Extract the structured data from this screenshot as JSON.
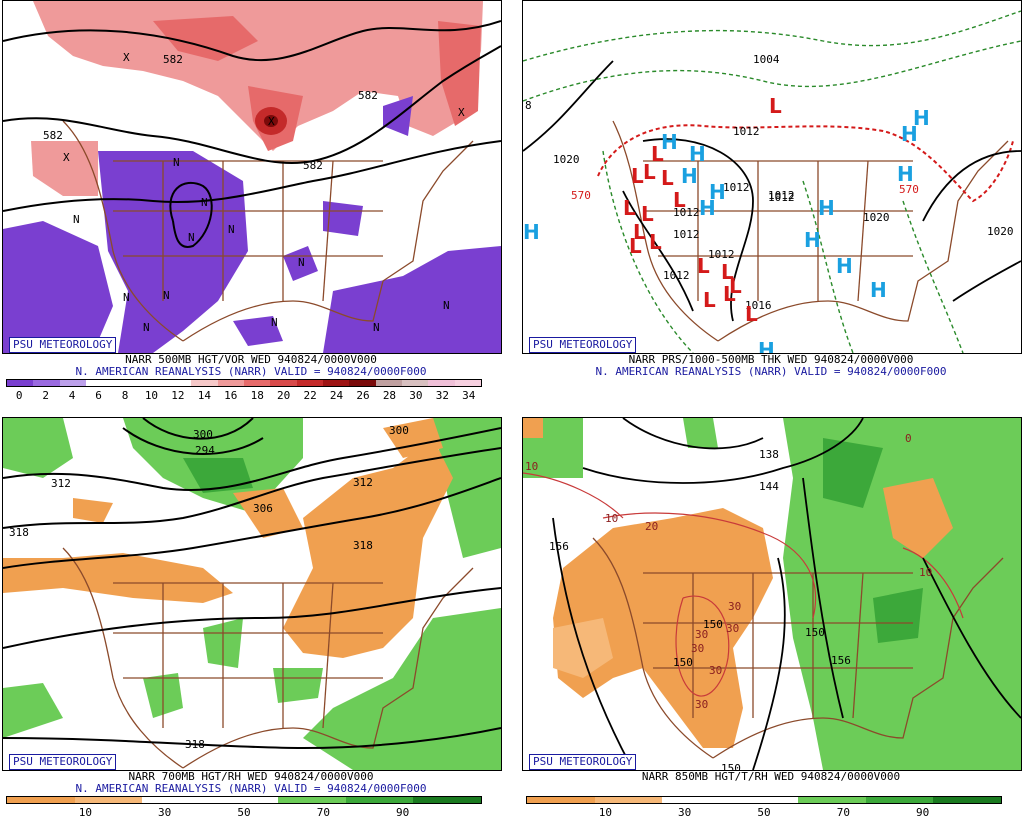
{
  "badge": "PSU METEOROLOGY",
  "reanalysis_line": "N. AMERICAN REANALYSIS (NARR) VALID = 940824/0000F000",
  "panels": [
    {
      "title": "NARR 500MB HGT/VOR WED 940824/0000V000",
      "ticks": [
        "0",
        "2",
        "4",
        "6",
        "8",
        "10",
        "12",
        "14",
        "16",
        "18",
        "20",
        "22",
        "24",
        "26",
        "28",
        "30",
        "32",
        "34"
      ],
      "colorbar": [
        "#7a3fd0",
        "#9a6ae0",
        "#bca0ea",
        "#ffffff",
        "#ffffff",
        "#ffffff",
        "#ffffff",
        "#f6c8c8",
        "#ef9a9a",
        "#e66a6a",
        "#d84a4a",
        "#c42a2a",
        "#9e1414",
        "#7a0a0a",
        "#c0a0a0",
        "#d8c0c0",
        "#f0c0d8",
        "#f7d0e0"
      ],
      "contour_labels": [
        "582",
        "582",
        "582",
        "582"
      ],
      "center_labels": [
        "X",
        "X",
        "X",
        "X",
        "N",
        "N",
        "N",
        "N",
        "N",
        "N",
        "N",
        "N",
        "N",
        "N",
        "N",
        "N"
      ]
    },
    {
      "title": "NARR PRS/1000-500MB THK WED 940824/0000V000",
      "contour_labels": [
        "1020",
        "1012",
        "1012",
        "1012",
        "1012",
        "1012",
        "1012",
        "1016",
        "1004",
        "1020",
        "1020",
        "1012",
        "1012",
        "8"
      ],
      "thickness_labels": [
        "570",
        "570"
      ],
      "highs": [
        "H",
        "H",
        "H",
        "H",
        "H",
        "H",
        "H",
        "H",
        "H",
        "H",
        "H",
        "H",
        "H",
        "H"
      ],
      "lows": [
        "L",
        "L",
        "L",
        "L",
        "L",
        "L",
        "L",
        "L",
        "L",
        "L",
        "L",
        "L",
        "L",
        "L",
        "L",
        "L",
        "L"
      ]
    },
    {
      "title": "NARR 700MB HGT/RH WED 940824/0000V000",
      "ticks": [
        "10",
        "30",
        "50",
        "70",
        "90"
      ],
      "colorbar": [
        "#f0a050",
        "#f6b878",
        "#ffffff",
        "#ffffff",
        "#6ccc58",
        "#3ca83a",
        "#1a7a20"
      ],
      "contour_labels": [
        "312",
        "318",
        "312",
        "306",
        "300",
        "294",
        "300",
        "318",
        "318"
      ]
    },
    {
      "title": "NARR 850MB HGT/T/RH WED 940824/0000V000",
      "ticks": [
        "10",
        "30",
        "50",
        "70",
        "90"
      ],
      "colorbar": [
        "#f0a050",
        "#f6b878",
        "#ffffff",
        "#ffffff",
        "#6ccc58",
        "#3ca83a",
        "#1a7a20"
      ],
      "contour_labels": [
        "156",
        "150",
        "150",
        "150",
        "156",
        "138",
        "144",
        "150"
      ],
      "temp_labels": [
        "10",
        "10",
        "20",
        "30",
        "30",
        "30",
        "30",
        "30",
        "30",
        "10",
        "0"
      ]
    }
  ]
}
